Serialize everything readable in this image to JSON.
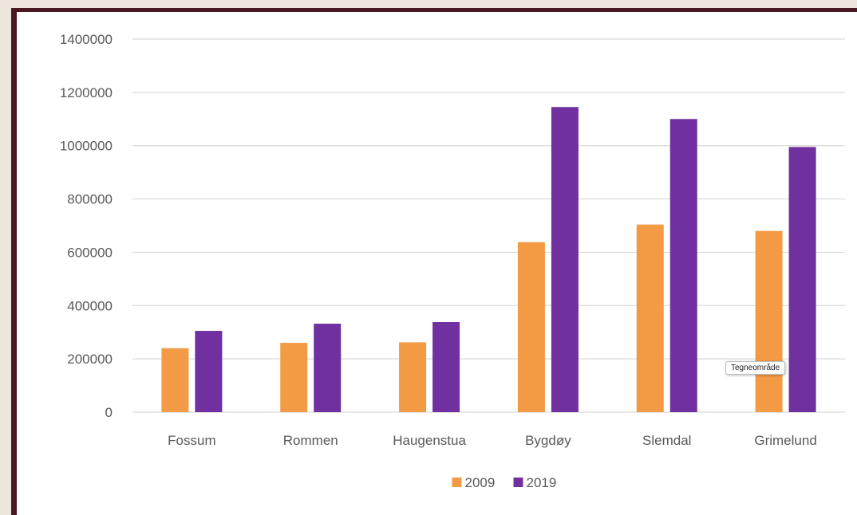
{
  "chart_data": {
    "type": "bar",
    "categories": [
      "Fossum",
      "Rommen",
      "Haugenstua",
      "Bygdøy",
      "Slemdal",
      "Grimelund"
    ],
    "series": [
      {
        "name": "2009",
        "values": [
          240000,
          260000,
          262000,
          638000,
          704000,
          680000
        ],
        "color": "#f39a45"
      },
      {
        "name": "2019",
        "values": [
          305000,
          332000,
          338000,
          1145000,
          1100000,
          995000
        ],
        "color": "#7030a0"
      }
    ],
    "yticks": [
      "0",
      "200000",
      "400000",
      "600000",
      "800000",
      "1000000",
      "1200000",
      "1400000"
    ],
    "ylim": [
      0,
      1400000
    ],
    "grid": true,
    "legend_position": "bottom",
    "title": "",
    "xlabel": "",
    "ylabel": ""
  },
  "tooltip": {
    "text": "Tegneområde"
  },
  "colors": {
    "gridline": "#d9d9d9",
    "text": "#595959",
    "frame": "#4a1822",
    "background": "#ede6dc"
  }
}
